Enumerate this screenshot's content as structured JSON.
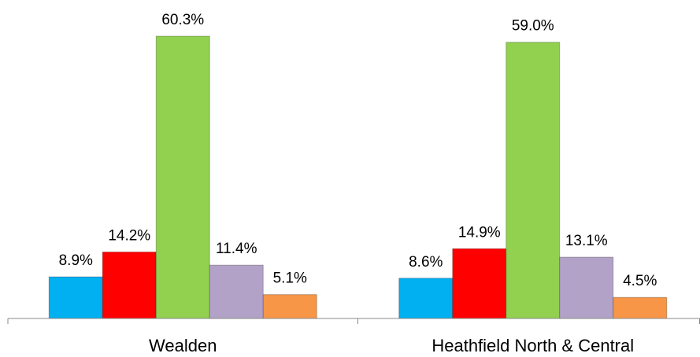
{
  "chart_data": {
    "type": "bar",
    "categories": [
      "Wealden",
      "Heathfield North & Central"
    ],
    "series": [
      {
        "color": "#00b0f0",
        "values": [
          8.9,
          8.6
        ],
        "value_labels": [
          "8.9%",
          "8.6%"
        ]
      },
      {
        "color": "#ff0000",
        "values": [
          14.2,
          14.9
        ],
        "value_labels": [
          "14.2%",
          "14.9%"
        ]
      },
      {
        "color": "#92d050",
        "values": [
          60.3,
          59.0
        ],
        "value_labels": [
          "60.3%",
          "59.0%"
        ]
      },
      {
        "color": "#b3a2c7",
        "values": [
          11.4,
          13.1
        ],
        "value_labels": [
          "11.4%",
          "13.1%"
        ]
      },
      {
        "color": "#f79646",
        "values": [
          5.1,
          4.5
        ],
        "value_labels": [
          "5.1%",
          "4.5%"
        ]
      }
    ],
    "ylim": [
      0,
      65
    ]
  }
}
